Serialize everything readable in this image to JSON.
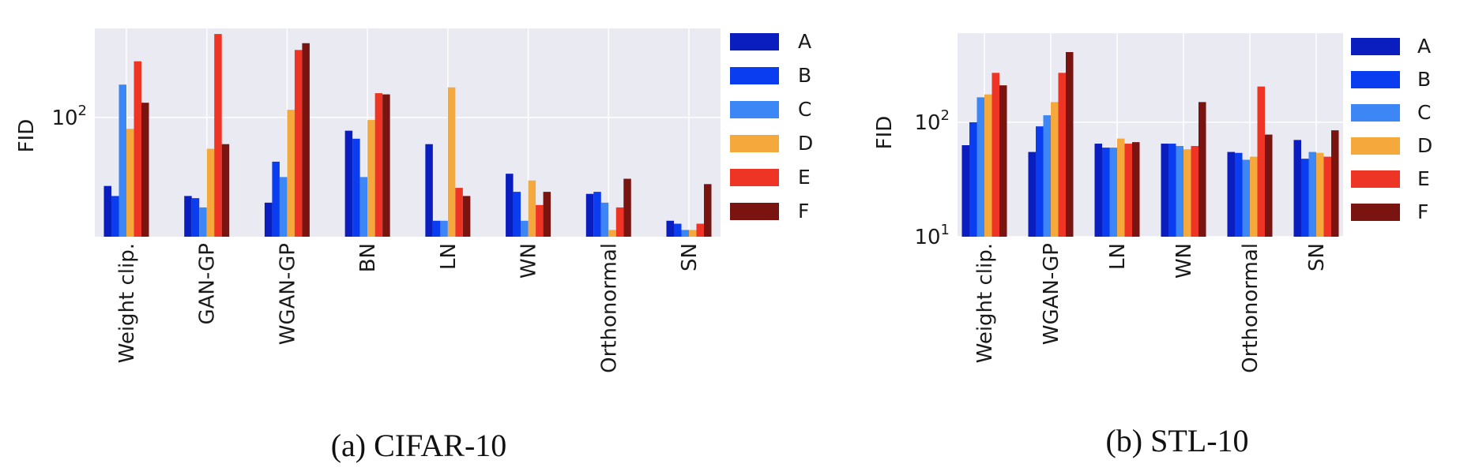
{
  "series_colors": [
    "#0a1ec0",
    "#0a3cf0",
    "#3c86f5",
    "#f5a93c",
    "#ee3525",
    "#7a1410"
  ],
  "chart_data": [
    {
      "type": "bar",
      "log_scale": true,
      "caption": "(a)  CIFAR-10",
      "ylabel": "FID",
      "ylim": [
        23,
        300
      ],
      "y_ticks": [
        {
          "value": 100,
          "base": "10",
          "exp": "2"
        }
      ],
      "grid": true,
      "legend_position": "right",
      "categories": [
        "Weight clip.",
        "GAN-GP",
        "WGAN-GP",
        "BN",
        "LN",
        "WN",
        "Orthonormal",
        "SN"
      ],
      "series": [
        {
          "name": "A",
          "values": [
            43,
            38,
            35,
            85,
            72,
            50,
            39,
            28
          ]
        },
        {
          "name": "B",
          "values": [
            38,
            37,
            58,
            77,
            28,
            40,
            40,
            27
          ]
        },
        {
          "name": "C",
          "values": [
            150,
            33,
            48,
            48,
            28,
            28,
            35,
            25
          ]
        },
        {
          "name": "D",
          "values": [
            87,
            68,
            110,
            97,
            145,
            46,
            25,
            25
          ]
        },
        {
          "name": "E",
          "values": [
            200,
            280,
            230,
            135,
            42,
            34,
            33,
            27
          ]
        },
        {
          "name": "F",
          "values": [
            120,
            72,
            250,
            133,
            38,
            40,
            47,
            44
          ]
        }
      ]
    },
    {
      "type": "bar",
      "log_scale": true,
      "caption": "(b)  STL-10",
      "ylabel": "FID",
      "ylim": [
        10,
        600
      ],
      "y_ticks": [
        {
          "value": 10,
          "base": "10",
          "exp": "1"
        },
        {
          "value": 100,
          "base": "10",
          "exp": "2"
        }
      ],
      "grid": true,
      "legend_position": "right",
      "categories": [
        "Weight clip.",
        "WGAN-GP",
        "LN",
        "WN",
        "Orthonormal",
        "SN"
      ],
      "series": [
        {
          "name": "A",
          "values": [
            63,
            55,
            65,
            65,
            55,
            70
          ]
        },
        {
          "name": "B",
          "values": [
            100,
            92,
            60,
            65,
            54,
            48
          ]
        },
        {
          "name": "C",
          "values": [
            165,
            115,
            60,
            62,
            47,
            55
          ]
        },
        {
          "name": "D",
          "values": [
            175,
            150,
            72,
            58,
            50,
            54
          ]
        },
        {
          "name": "E",
          "values": [
            270,
            270,
            65,
            62,
            205,
            50
          ]
        },
        {
          "name": "F",
          "values": [
            210,
            410,
            67,
            150,
            78,
            85
          ]
        }
      ]
    }
  ]
}
